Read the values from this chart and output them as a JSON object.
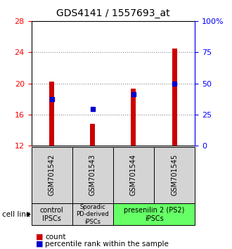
{
  "title": "GDS4141 / 1557693_at",
  "samples": [
    "GSM701542",
    "GSM701543",
    "GSM701544",
    "GSM701545"
  ],
  "red_values": [
    20.2,
    14.8,
    19.3,
    24.5
  ],
  "blue_values": [
    18.0,
    16.7,
    18.6,
    20.0
  ],
  "red_base": 12,
  "ylim_left": [
    12,
    28
  ],
  "ylim_right": [
    0,
    100
  ],
  "yticks_left": [
    12,
    16,
    20,
    24,
    28
  ],
  "yticks_right": [
    0,
    25,
    50,
    75,
    100
  ],
  "ytick_labels_right": [
    "0",
    "25",
    "50",
    "75",
    "100%"
  ],
  "groups": [
    {
      "label": "control\nIPSCs",
      "start": 0,
      "end": 1,
      "color": "#d4d4d4"
    },
    {
      "label": "Sporadic\nPD-derived\niPSCs",
      "start": 1,
      "end": 2,
      "color": "#d4d4d4"
    },
    {
      "label": "presenilin 2 (PS2)\niPSCs",
      "start": 2,
      "end": 4,
      "color": "#66ff66"
    }
  ],
  "legend_red_label": "count",
  "legend_blue_label": "percentile rank within the sample",
  "cell_line_label": "cell line",
  "bar_width": 0.12,
  "marker_size": 5,
  "red_color": "#cc0000",
  "blue_color": "#0000cc",
  "grid_color": "#888888",
  "sample_box_color": "#d4d4d4",
  "title_fontsize": 10,
  "tick_fontsize": 8,
  "label_fontsize": 8
}
